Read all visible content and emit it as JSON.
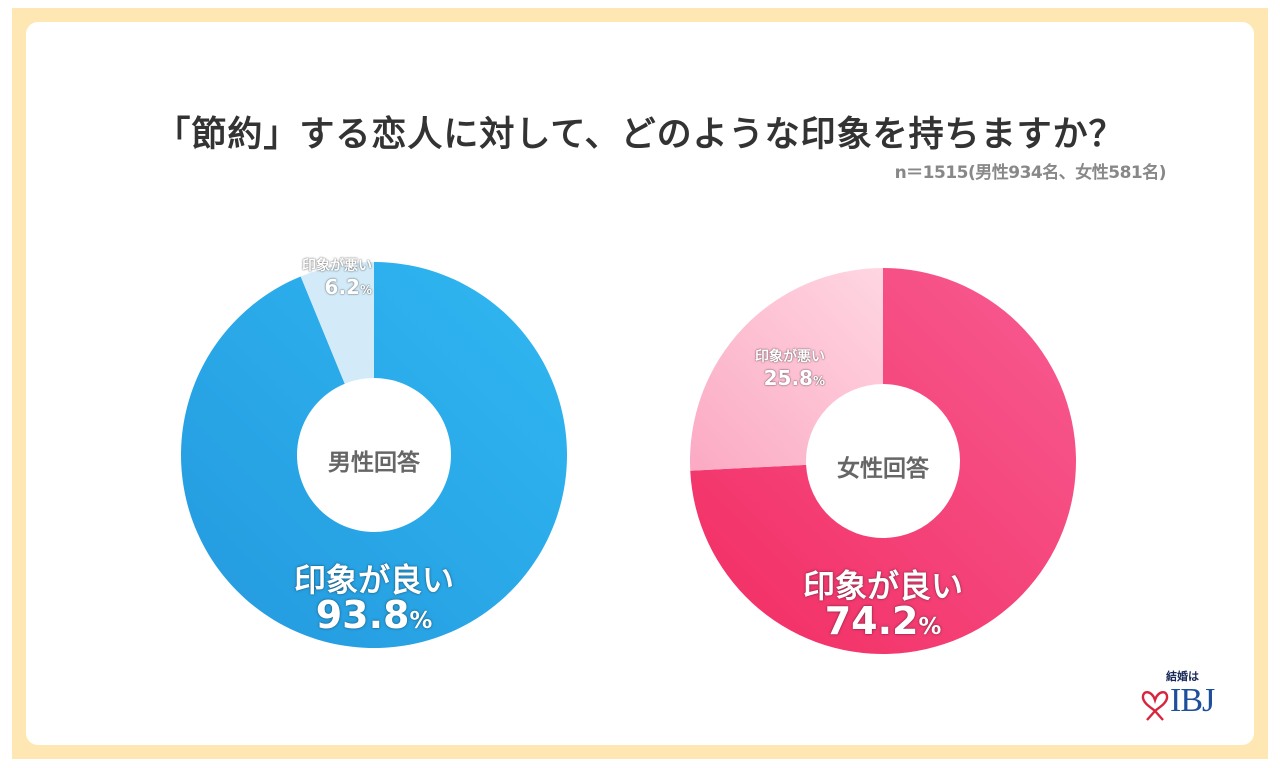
{
  "title": "「節約」する恋人に対して、どのような印象を持ちますか？",
  "sample_note": "n＝1515(男性934名、女性581名)",
  "colors": {
    "frame": "#FFE7B3",
    "male_good_start": "#2499DE",
    "male_good_end": "#30B8F2",
    "male_bad": "#D3EBF8",
    "female_good_start": "#F22C62",
    "female_good_end": "#F75C92",
    "female_bad_start": "#FBAAC3",
    "female_bad_end": "#FFD6E2"
  },
  "charts": {
    "male": {
      "center_label": "男性回答",
      "good": {
        "label": "印象が良い",
        "value": "93.8",
        "unit": "%"
      },
      "bad": {
        "label": "印象が悪い",
        "value": "6.2",
        "unit": "%"
      }
    },
    "female": {
      "center_label": "女性回答",
      "good": {
        "label": "印象が良い",
        "value": "74.2",
        "unit": "%"
      },
      "bad": {
        "label": "印象が悪い",
        "value": "25.8",
        "unit": "%"
      }
    }
  },
  "logo": {
    "tagline": "結婚は",
    "brand": "IBJ"
  },
  "chart_data": [
    {
      "type": "pie",
      "title": "「節約」する恋人に対して、どのような印象を持ちますか？ — 男性回答",
      "subtitle": "n＝1515(男性934名、女性581名)",
      "categories": [
        "印象が良い",
        "印象が悪い"
      ],
      "values": [
        93.8,
        6.2
      ],
      "unit": "%",
      "donut": true,
      "center_label": "男性回答"
    },
    {
      "type": "pie",
      "title": "「節約」する恋人に対して、どのような印象を持ちますか？ — 女性回答",
      "subtitle": "n＝1515(男性934名、女性581名)",
      "categories": [
        "印象が良い",
        "印象が悪い"
      ],
      "values": [
        74.2,
        25.8
      ],
      "unit": "%",
      "donut": true,
      "center_label": "女性回答"
    }
  ]
}
